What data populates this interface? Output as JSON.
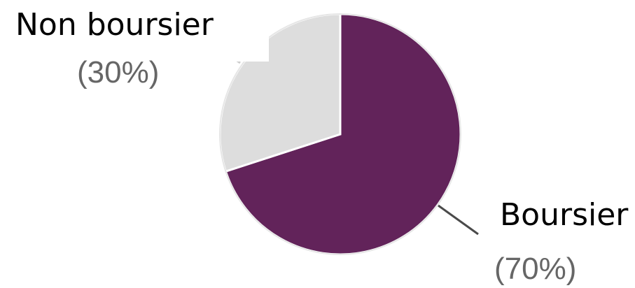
{
  "chart_data": {
    "type": "pie",
    "slices": [
      {
        "label": "Boursier",
        "percent_label": "(70%)",
        "value": 70,
        "color": "#62235a"
      },
      {
        "label": "Non boursier",
        "percent_label": "(30%)",
        "value": 30,
        "color": "#dddddd"
      }
    ]
  }
}
